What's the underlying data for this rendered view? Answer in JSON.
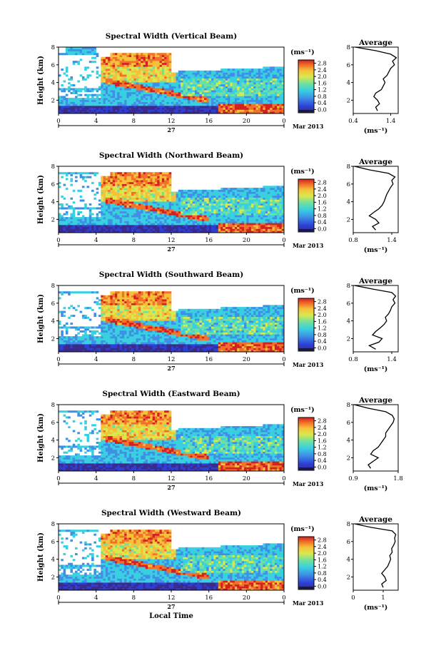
{
  "chart_data": [
    {
      "type": "heatmap",
      "title": "Spectral Width (Vertical Beam)",
      "ylabel": "Height (km)",
      "xlabel": "",
      "x_ticks": [
        "0",
        "4",
        "8",
        "12",
        "16",
        "20",
        "0"
      ],
      "y_ticks": [
        "2",
        "4",
        "6",
        "8"
      ],
      "date_label": "27",
      "month_label": "Mar 2013",
      "colorbar": {
        "unit": "(ms⁻¹)",
        "ticks": [
          "0.0",
          "0.4",
          "0.8",
          "1.2",
          "1.6",
          "2.0",
          "2.4",
          "2.8"
        ],
        "range": [
          0,
          3.0
        ]
      },
      "profile": {
        "title": "Average",
        "xlabel": "(ms⁻¹)",
        "x_ticks": [
          "0.4",
          "1.4"
        ],
        "xlim": [
          0.4,
          1.6
        ],
        "y_ticks": [
          "2",
          "4",
          "6",
          "8"
        ],
        "heights": [
          0.8,
          1.2,
          1.6,
          2.0,
          2.4,
          2.8,
          3.2,
          3.6,
          4.0,
          4.4,
          4.8,
          5.2,
          5.6,
          6.0,
          6.4,
          6.8,
          7.2,
          7.6,
          8.0
        ],
        "values": [
          1.05,
          1.0,
          1.1,
          1.05,
          0.95,
          1.0,
          1.15,
          1.2,
          1.25,
          1.2,
          1.3,
          1.35,
          1.4,
          1.5,
          1.45,
          1.55,
          1.4,
          1.0,
          0.45
        ]
      }
    },
    {
      "type": "heatmap",
      "title": "Spectral Width (Northward Beam)",
      "ylabel": "Height (km)",
      "xlabel": "",
      "x_ticks": [
        "0",
        "4",
        "8",
        "12",
        "16",
        "20",
        "0"
      ],
      "y_ticks": [
        "2",
        "4",
        "6",
        "8"
      ],
      "date_label": "27",
      "month_label": "Mar 2013",
      "colorbar": {
        "unit": "(ms⁻¹)",
        "ticks": [
          "0.0",
          "0.4",
          "0.8",
          "1.2",
          "1.6",
          "2.0",
          "2.4",
          "2.8"
        ],
        "range": [
          0,
          3.0
        ]
      },
      "profile": {
        "title": "Average",
        "xlabel": "(ms⁻¹)",
        "x_ticks": [
          "0.8",
          "1.4"
        ],
        "xlim": [
          0.8,
          1.5
        ],
        "y_ticks": [
          "2",
          "4",
          "6",
          "8"
        ],
        "heights": [
          0.8,
          1.2,
          1.6,
          2.0,
          2.4,
          2.8,
          3.2,
          3.6,
          4.0,
          4.4,
          4.8,
          5.2,
          5.6,
          6.0,
          6.4,
          6.8,
          7.2,
          7.6,
          8.0
        ],
        "values": [
          1.15,
          1.1,
          1.2,
          1.15,
          1.05,
          1.12,
          1.2,
          1.25,
          1.28,
          1.3,
          1.32,
          1.35,
          1.38,
          1.42,
          1.4,
          1.45,
          1.35,
          1.05,
          0.82
        ]
      }
    },
    {
      "type": "heatmap",
      "title": "Spectral Width (Southward Beam)",
      "ylabel": "Height (km)",
      "xlabel": "",
      "x_ticks": [
        "0",
        "4",
        "8",
        "12",
        "16",
        "20",
        "0"
      ],
      "y_ticks": [
        "2",
        "4",
        "6",
        "8"
      ],
      "date_label": "27",
      "month_label": "Mar 2013",
      "colorbar": {
        "unit": "(ms⁻¹)",
        "ticks": [
          "0.0",
          "0.4",
          "0.8",
          "1.2",
          "1.6",
          "2.0",
          "2.4",
          "2.8"
        ],
        "range": [
          0,
          3.0
        ]
      },
      "profile": {
        "title": "Average",
        "xlabel": "(ms⁻¹)",
        "x_ticks": [
          "0.8",
          "1.4"
        ],
        "xlim": [
          0.8,
          1.5
        ],
        "y_ticks": [
          "2",
          "4",
          "6",
          "8"
        ],
        "heights": [
          0.8,
          1.2,
          1.6,
          2.0,
          2.4,
          2.8,
          3.2,
          3.6,
          4.0,
          4.4,
          4.8,
          5.2,
          5.6,
          6.0,
          6.4,
          6.8,
          7.2,
          7.6,
          8.0
        ],
        "values": [
          1.15,
          1.05,
          1.2,
          1.25,
          1.1,
          1.15,
          1.22,
          1.28,
          1.32,
          1.3,
          1.35,
          1.38,
          1.4,
          1.45,
          1.42,
          1.46,
          1.4,
          1.1,
          0.82
        ]
      }
    },
    {
      "type": "heatmap",
      "title": "Spectral Width (Eastward Beam)",
      "ylabel": "Height (km)",
      "xlabel": "",
      "x_ticks": [
        "0",
        "4",
        "8",
        "12",
        "16",
        "20",
        "0"
      ],
      "y_ticks": [
        "2",
        "4",
        "6",
        "8"
      ],
      "date_label": "27",
      "month_label": "Mar 2013",
      "colorbar": {
        "unit": "(ms⁻¹)",
        "ticks": [
          "0.0",
          "0.4",
          "0.8",
          "1.2",
          "1.6",
          "2.0",
          "2.4",
          "2.8"
        ],
        "range": [
          0,
          3.0
        ]
      },
      "profile": {
        "title": "Average",
        "xlabel": "(ms⁻¹)",
        "x_ticks": [
          "0.9",
          "1.8"
        ],
        "xlim": [
          0.9,
          1.8
        ],
        "y_ticks": [
          "2",
          "4",
          "6",
          "8"
        ],
        "heights": [
          0.8,
          1.2,
          1.6,
          2.0,
          2.4,
          2.8,
          3.2,
          3.6,
          4.0,
          4.4,
          4.8,
          5.2,
          5.6,
          6.0,
          6.4,
          6.8,
          7.2,
          7.6,
          8.0
        ],
        "values": [
          1.25,
          1.2,
          1.3,
          1.4,
          1.25,
          1.3,
          1.4,
          1.45,
          1.5,
          1.55,
          1.55,
          1.6,
          1.65,
          1.7,
          1.72,
          1.68,
          1.55,
          1.2,
          0.92
        ]
      }
    },
    {
      "type": "heatmap",
      "title": "Spectral Width (Westward Beam)",
      "ylabel": "Height (km)",
      "xlabel": "Local Time",
      "x_ticks": [
        "0",
        "4",
        "8",
        "12",
        "16",
        "20",
        "0"
      ],
      "y_ticks": [
        "2",
        "4",
        "6",
        "8"
      ],
      "date_label": "27",
      "month_label": "Mar 2013",
      "colorbar": {
        "unit": "(ms⁻¹)",
        "ticks": [
          "0.0",
          "0.4",
          "0.8",
          "1.2",
          "1.6",
          "2.0",
          "2.4",
          "2.8"
        ],
        "range": [
          0,
          3.0
        ]
      },
      "profile": {
        "title": "Average",
        "xlabel": "(ms⁻¹)",
        "x_ticks": [
          "0",
          "1"
        ],
        "xlim": [
          0,
          1.5
        ],
        "y_ticks": [
          "2",
          "4",
          "6",
          "8"
        ],
        "heights": [
          0.8,
          1.2,
          1.6,
          2.0,
          2.4,
          2.8,
          3.2,
          3.6,
          4.0,
          4.4,
          4.8,
          5.2,
          5.6,
          6.0,
          6.4,
          6.8,
          7.2,
          7.6,
          8.0
        ],
        "values": [
          1.0,
          0.95,
          1.1,
          1.05,
          0.95,
          1.05,
          1.15,
          1.2,
          1.25,
          1.22,
          1.3,
          1.28,
          1.35,
          1.4,
          1.38,
          1.42,
          1.3,
          0.6,
          0.05
        ]
      }
    }
  ]
}
